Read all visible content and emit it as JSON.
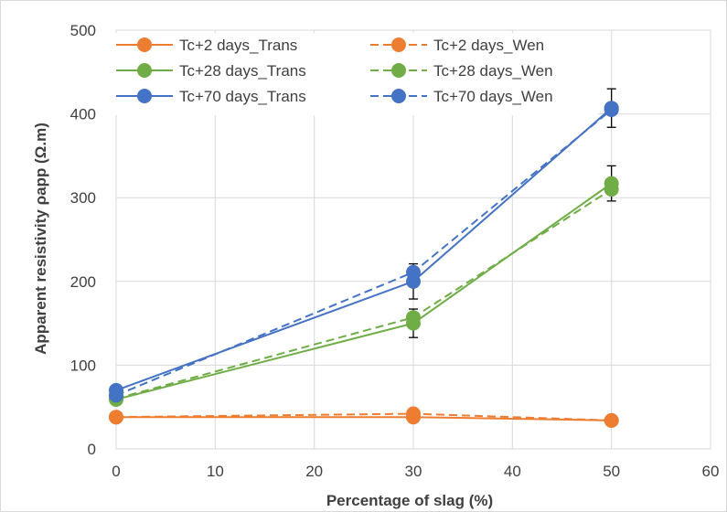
{
  "chart_data": {
    "type": "line",
    "title": "",
    "xlabel": "Percentage of slag (%)",
    "ylabel": "Apparent resistivity ρapp (Ω.m)",
    "xlim": [
      0,
      60
    ],
    "ylim": [
      0,
      500
    ],
    "xticks": [
      0,
      10,
      20,
      30,
      40,
      50,
      60
    ],
    "yticks": [
      0,
      100,
      200,
      300,
      400,
      500
    ],
    "grid": "horizontal and vertical",
    "legend_position": "top-left",
    "x": [
      0,
      30,
      50
    ],
    "series": [
      {
        "name": "Tc+2 days_Trans",
        "values": [
          38,
          38,
          34
        ],
        "color": "#ED7D31",
        "dash": "solid"
      },
      {
        "name": "Tc+2 days_Wen",
        "values": [
          38,
          42,
          34
        ],
        "color": "#ED7D31",
        "dash": "dashed"
      },
      {
        "name": "Tc+28 days_Trans",
        "values": [
          59,
          150,
          317
        ],
        "color": "#70AD47",
        "dash": "solid",
        "error": [
          null,
          17,
          21
        ]
      },
      {
        "name": "Tc+28 days_Wen",
        "values": [
          60,
          157,
          310
        ],
        "color": "#70AD47",
        "dash": "dashed"
      },
      {
        "name": "Tc+70 days_Trans",
        "values": [
          70,
          200,
          407
        ],
        "color": "#4472C4",
        "dash": "solid",
        "error": [
          null,
          21,
          23
        ]
      },
      {
        "name": "Tc+70 days_Wen",
        "values": [
          64,
          211,
          405
        ],
        "color": "#4472C4",
        "dash": "dashed"
      }
    ]
  }
}
